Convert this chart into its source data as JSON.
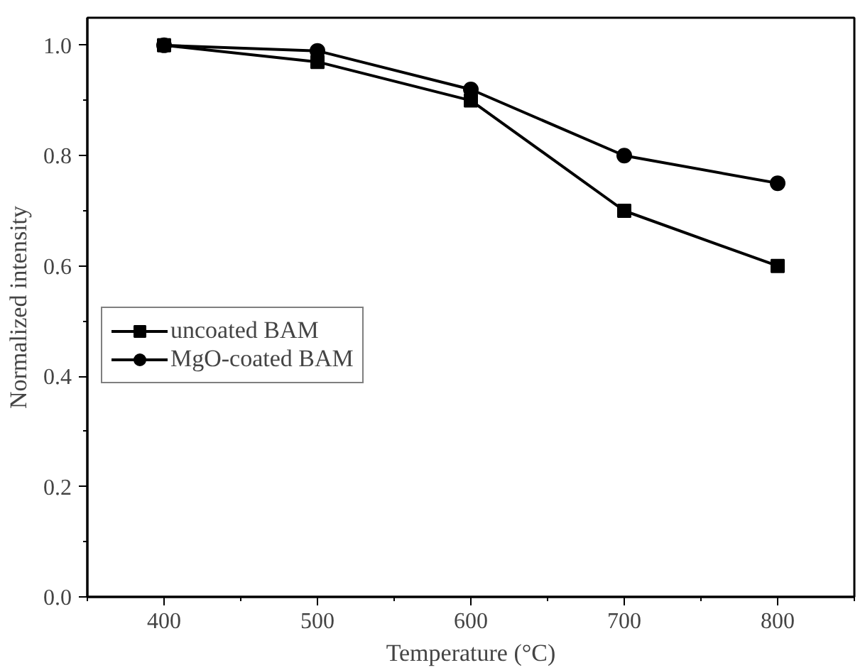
{
  "chart_data": {
    "type": "line",
    "xlabel": "Temperature (°C)",
    "ylabel": "Normalized intensity",
    "x": [
      400,
      500,
      600,
      700,
      800
    ],
    "series": [
      {
        "name": "uncoated BAM",
        "color": "#000000",
        "marker": "square",
        "values": [
          1.0,
          0.97,
          0.9,
          0.7,
          0.6
        ]
      },
      {
        "name": "MgO-coated BAM",
        "color": "#000000",
        "marker": "circle",
        "values": [
          1.0,
          0.99,
          0.92,
          0.8,
          0.75
        ]
      }
    ],
    "xlim": [
      350,
      850
    ],
    "ylim": [
      0,
      1.05
    ],
    "xticks": [
      400,
      500,
      600,
      700,
      800
    ],
    "yticks": [
      {
        "value": 0,
        "label": "0.0"
      },
      {
        "value": 0.2,
        "label": "0.2"
      },
      {
        "value": 0.4,
        "label": "0.4"
      },
      {
        "value": 0.6,
        "label": "0.6"
      },
      {
        "value": 0.8,
        "label": "0.8"
      },
      {
        "value": 1.0,
        "label": "1.0"
      }
    ],
    "grid": false,
    "legend": "left",
    "line_style": "solid"
  }
}
